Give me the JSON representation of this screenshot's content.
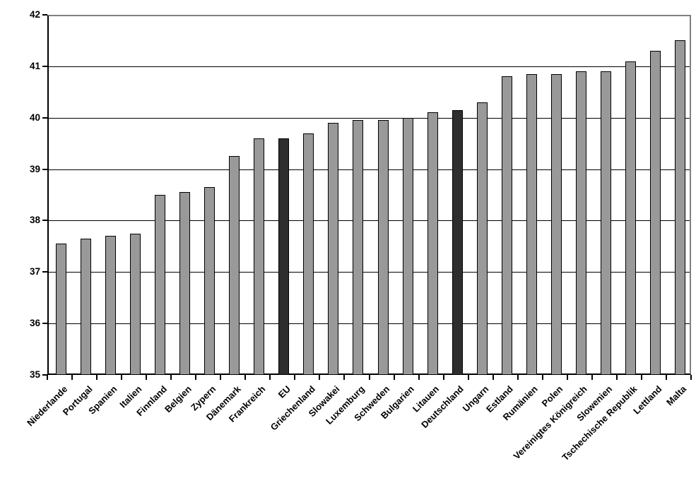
{
  "chart_data": {
    "type": "bar",
    "title": "",
    "xlabel": "",
    "ylabel": "",
    "categories": [
      "Niederlande",
      "Portugal",
      "Spanien",
      "Italien",
      "Finnland",
      "Belgien",
      "Zypern",
      "Dänemark",
      "Frankreich",
      "EU",
      "Griechenland",
      "Slowakei",
      "Luxemburg",
      "Schweden",
      "Bulgarien",
      "Litauen",
      "Deutschland",
      "Ungarn",
      "Estland",
      "Rumänien",
      "Polen",
      "Vereinigtes Königreich",
      "Slowenien",
      "Tschechische Republik",
      "Lettland",
      "Malta"
    ],
    "values": [
      37.55,
      37.65,
      37.7,
      37.75,
      38.5,
      38.55,
      38.65,
      39.25,
      39.6,
      39.6,
      39.7,
      39.9,
      39.95,
      39.95,
      40.0,
      40.1,
      40.15,
      40.3,
      40.8,
      40.85,
      40.85,
      40.9,
      40.9,
      41.1,
      41.3,
      41.5
    ],
    "highlight_indices": [
      9,
      16
    ],
    "yticks": [
      35,
      36,
      37,
      38,
      39,
      40,
      41,
      42
    ],
    "ylim": [
      35,
      42
    ],
    "grid": true,
    "legend": "none",
    "colors": {
      "bar_fill": "#999999",
      "highlight_fill": "#2e2e2e",
      "bar_border": "#000000",
      "gridline": "#000000",
      "axis": "#000000",
      "plot_border": "#808080",
      "background": "#ffffff",
      "text": "#000000"
    }
  }
}
